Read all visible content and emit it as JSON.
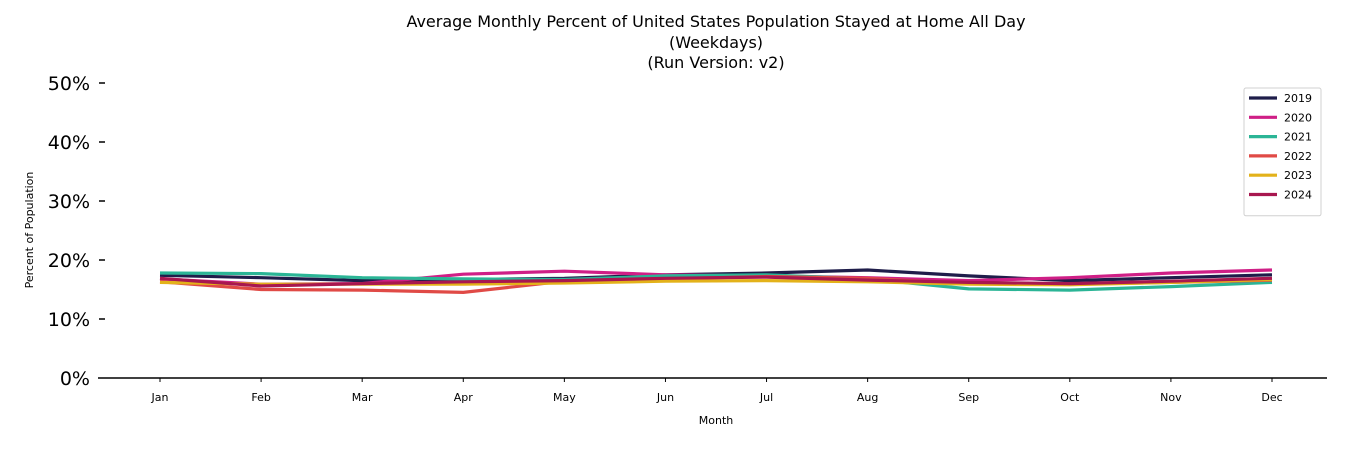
{
  "chart_data": {
    "type": "line",
    "title": [
      "Average Monthly Percent of United States Population Stayed at Home All Day",
      "(Weekdays)",
      "(Run Version: v2)"
    ],
    "xlabel": "Month",
    "ylabel": "Percent of Population",
    "categories": [
      "Jan",
      "Feb",
      "Mar",
      "Apr",
      "May",
      "Jun",
      "Jul",
      "Aug",
      "Sep",
      "Oct",
      "Nov",
      "Dec"
    ],
    "ylim": [
      0,
      50
    ],
    "yticks": [
      0,
      10,
      20,
      30,
      40,
      50
    ],
    "ytick_labels": [
      "0%",
      "10%",
      "20%",
      "30%",
      "40%",
      "50%"
    ],
    "grid": false,
    "legend_position": "top-right",
    "series": [
      {
        "name": "2019",
        "color": "#1f1d4a",
        "values": [
          17.4,
          17.0,
          16.5,
          16.7,
          16.9,
          17.5,
          17.8,
          18.3,
          17.3,
          16.5,
          17.0,
          17.5
        ]
      },
      {
        "name": "2020",
        "color": "#cf1f86",
        "values": [
          16.8,
          15.9,
          16.0,
          17.6,
          18.1,
          17.5,
          17.3,
          17.0,
          16.5,
          17.0,
          17.8,
          18.3
        ]
      },
      {
        "name": "2021",
        "color": "#2bb596",
        "values": [
          17.8,
          17.7,
          17.0,
          16.8,
          16.7,
          17.3,
          17.5,
          16.8,
          15.1,
          14.9,
          15.5,
          16.2
        ]
      },
      {
        "name": "2022",
        "color": "#e04a46",
        "values": [
          16.3,
          15.0,
          14.9,
          14.5,
          16.4,
          16.8,
          17.2,
          16.9,
          16.0,
          15.9,
          16.2,
          16.6
        ]
      },
      {
        "name": "2023",
        "color": "#e3b21a",
        "values": [
          16.2,
          15.9,
          15.9,
          15.9,
          16.1,
          16.4,
          16.5,
          16.3,
          15.9,
          15.8,
          16.2,
          16.7
        ]
      },
      {
        "name": "2024",
        "color": "#a8174f",
        "values": [
          16.9,
          15.6,
          16.0,
          16.3,
          16.5,
          16.9,
          17.1,
          16.6,
          16.2,
          16.0,
          16.4,
          16.9
        ]
      }
    ]
  }
}
